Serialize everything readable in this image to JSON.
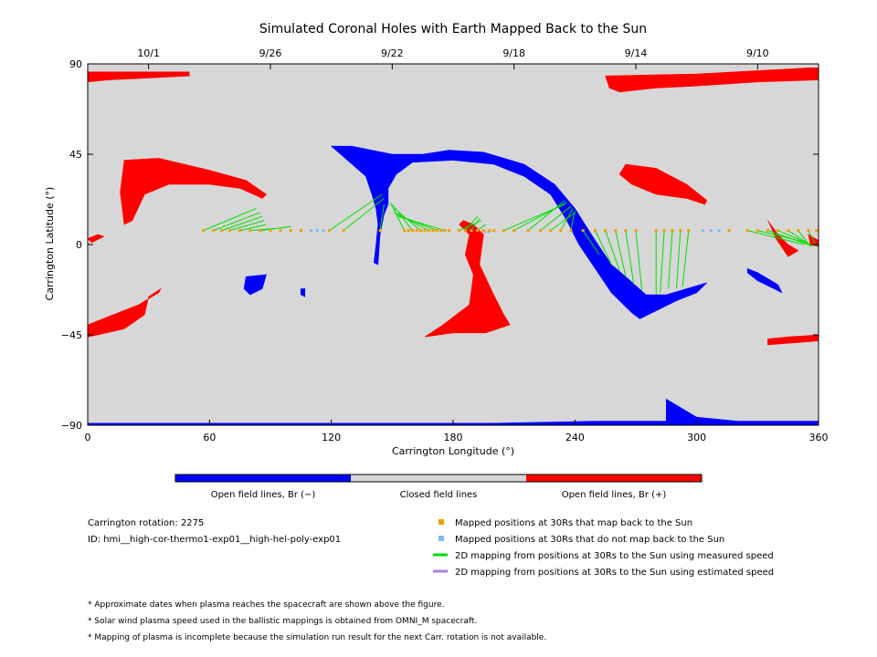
{
  "chart_data": {
    "type": "scatter",
    "title": "Simulated Coronal Holes with Earth Mapped Back to the Sun",
    "xlabel": "Carrington Longitude (°)",
    "ylabel": "Carrington Latitude (°)",
    "xlim": [
      0,
      360
    ],
    "ylim": [
      -90,
      90
    ],
    "x_ticks": [
      "0",
      "60",
      "120",
      "180",
      "240",
      "300",
      "360"
    ],
    "y_ticks": [
      "−90",
      "−45",
      "0",
      "45",
      "90"
    ],
    "top_axis_dates": [
      {
        "label": "10/1",
        "lon": 30
      },
      {
        "label": "9/26",
        "lon": 90
      },
      {
        "label": "9/22",
        "lon": 150
      },
      {
        "label": "9/18",
        "lon": 210
      },
      {
        "label": "9/14",
        "lon": 270
      },
      {
        "label": "9/10",
        "lon": 330
      }
    ],
    "regions": {
      "positive": [
        [
          [
            0,
            86
          ],
          [
            50,
            86
          ],
          [
            50,
            84
          ],
          [
            30,
            83
          ],
          [
            10,
            82
          ],
          [
            0,
            81
          ]
        ],
        [
          [
            255,
            84
          ],
          [
            300,
            85
          ],
          [
            355,
            88
          ],
          [
            360,
            88
          ],
          [
            360,
            82
          ],
          [
            330,
            81
          ],
          [
            300,
            79
          ],
          [
            280,
            78
          ],
          [
            262,
            76
          ],
          [
            257,
            78
          ]
        ],
        [
          [
            18,
            42
          ],
          [
            35,
            43
          ],
          [
            60,
            37
          ],
          [
            78,
            32
          ],
          [
            88,
            25
          ],
          [
            86,
            23
          ],
          [
            75,
            28
          ],
          [
            60,
            30
          ],
          [
            40,
            30
          ],
          [
            28,
            25
          ],
          [
            22,
            12
          ],
          [
            18,
            10
          ],
          [
            16,
            26
          ]
        ],
        [
          [
            0,
            3
          ],
          [
            5,
            5
          ],
          [
            8,
            4
          ],
          [
            2,
            1
          ]
        ],
        [
          [
            0,
            -40
          ],
          [
            10,
            -36
          ],
          [
            25,
            -30
          ],
          [
            35,
            -24
          ],
          [
            36,
            -22
          ],
          [
            30,
            -26
          ],
          [
            28,
            -35
          ],
          [
            18,
            -42
          ],
          [
            5,
            -45
          ],
          [
            0,
            -46
          ]
        ],
        [
          [
            185,
            12
          ],
          [
            190,
            10
          ],
          [
            195,
            5
          ],
          [
            193,
            -10
          ],
          [
            200,
            -25
          ],
          [
            205,
            -35
          ],
          [
            208,
            -40
          ],
          [
            196,
            -44
          ],
          [
            180,
            -44
          ],
          [
            166,
            -46
          ],
          [
            175,
            -40
          ],
          [
            188,
            -30
          ],
          [
            190,
            -15
          ],
          [
            186,
            -5
          ],
          [
            188,
            5
          ],
          [
            183,
            10
          ]
        ],
        [
          [
            265,
            40
          ],
          [
            280,
            38
          ],
          [
            295,
            30
          ],
          [
            305,
            22
          ],
          [
            304,
            20
          ],
          [
            295,
            23
          ],
          [
            280,
            25
          ],
          [
            268,
            30
          ],
          [
            262,
            35
          ]
        ],
        [
          [
            335,
            12
          ],
          [
            340,
            5
          ],
          [
            345,
            0
          ],
          [
            350,
            -3
          ],
          [
            345,
            -6
          ],
          [
            339,
            3
          ],
          [
            336,
            10
          ]
        ],
        [
          [
            335,
            -50
          ],
          [
            360,
            -48
          ],
          [
            360,
            -45
          ],
          [
            345,
            -46
          ],
          [
            335,
            -47
          ]
        ],
        [
          [
            355,
            5
          ],
          [
            360,
            2
          ],
          [
            360,
            -1
          ],
          [
            356,
            0
          ]
        ]
      ],
      "negative": [
        [
          [
            120,
            49
          ],
          [
            130,
            49
          ],
          [
            150,
            45
          ],
          [
            165,
            45
          ],
          [
            178,
            47
          ],
          [
            195,
            46
          ],
          [
            215,
            40
          ],
          [
            230,
            30
          ],
          [
            240,
            18
          ],
          [
            245,
            10
          ],
          [
            250,
            2
          ],
          [
            258,
            -10
          ],
          [
            265,
            -16
          ],
          [
            275,
            -25
          ],
          [
            285,
            -25
          ],
          [
            295,
            -22
          ],
          [
            305,
            -19
          ],
          [
            300,
            -24
          ],
          [
            290,
            -28
          ],
          [
            280,
            -33
          ],
          [
            272,
            -37
          ],
          [
            268,
            -34
          ],
          [
            258,
            -24
          ],
          [
            250,
            -12
          ],
          [
            242,
            0
          ],
          [
            236,
            12
          ],
          [
            228,
            25
          ],
          [
            215,
            34
          ],
          [
            200,
            40
          ],
          [
            180,
            42
          ],
          [
            160,
            41
          ],
          [
            152,
            35
          ],
          [
            148,
            28
          ],
          [
            148,
            20
          ],
          [
            146,
            15
          ],
          [
            144,
            5
          ],
          [
            143,
            -10
          ],
          [
            141,
            -9
          ],
          [
            142,
            0
          ],
          [
            143,
            10
          ],
          [
            142,
            18
          ],
          [
            140,
            25
          ],
          [
            137,
            34
          ],
          [
            128,
            42
          ]
        ],
        [
          [
            78,
            -16
          ],
          [
            88,
            -15
          ],
          [
            86,
            -22
          ],
          [
            80,
            -25
          ],
          [
            77,
            -22
          ]
        ],
        [
          [
            105,
            -22
          ],
          [
            107,
            -22
          ],
          [
            107,
            -26
          ],
          [
            105,
            -25
          ]
        ],
        [
          [
            325,
            -12
          ],
          [
            330,
            -14
          ],
          [
            340,
            -20
          ],
          [
            342,
            -24
          ],
          [
            338,
            -22
          ],
          [
            330,
            -18
          ],
          [
            325,
            -14
          ]
        ],
        [
          [
            0,
            -90
          ],
          [
            360,
            -90
          ],
          [
            360,
            -88
          ],
          [
            300,
            -88
          ],
          [
            250,
            -88
          ],
          [
            200,
            -89
          ],
          [
            100,
            -89
          ],
          [
            0,
            -89
          ]
        ],
        [
          [
            285,
            -77
          ],
          [
            300,
            -86
          ],
          [
            320,
            -88
          ],
          [
            300,
            -88
          ],
          [
            285,
            -88
          ]
        ]
      ]
    },
    "mapped_points_measured": [
      {
        "lon": 57,
        "lat": 7
      },
      {
        "lon": 62,
        "lat": 7
      },
      {
        "lon": 66,
        "lat": 7
      },
      {
        "lon": 70,
        "lat": 7
      },
      {
        "lon": 75,
        "lat": 7
      },
      {
        "lon": 80,
        "lat": 7
      },
      {
        "lon": 85,
        "lat": 7
      },
      {
        "lon": 90,
        "lat": 7
      },
      {
        "lon": 95,
        "lat": 7
      },
      {
        "lon": 100,
        "lat": 7
      },
      {
        "lon": 105,
        "lat": 7
      },
      {
        "lon": 119,
        "lat": 7
      },
      {
        "lon": 126,
        "lat": 7
      },
      {
        "lon": 144,
        "lat": 7
      },
      {
        "lon": 156,
        "lat": 7
      },
      {
        "lon": 158,
        "lat": 7
      },
      {
        "lon": 160,
        "lat": 7
      },
      {
        "lon": 162,
        "lat": 7
      },
      {
        "lon": 164,
        "lat": 7
      },
      {
        "lon": 166,
        "lat": 7
      },
      {
        "lon": 168,
        "lat": 7
      },
      {
        "lon": 170,
        "lat": 7
      },
      {
        "lon": 172,
        "lat": 7
      },
      {
        "lon": 174,
        "lat": 7
      },
      {
        "lon": 176,
        "lat": 7
      },
      {
        "lon": 178,
        "lat": 7
      },
      {
        "lon": 183,
        "lat": 7
      },
      {
        "lon": 186,
        "lat": 7
      },
      {
        "lon": 189,
        "lat": 7
      },
      {
        "lon": 192,
        "lat": 7
      },
      {
        "lon": 195,
        "lat": 7
      },
      {
        "lon": 198,
        "lat": 7
      },
      {
        "lon": 200,
        "lat": 7
      },
      {
        "lon": 205,
        "lat": 7
      },
      {
        "lon": 210,
        "lat": 7
      },
      {
        "lon": 217,
        "lat": 7
      },
      {
        "lon": 223,
        "lat": 7
      },
      {
        "lon": 228,
        "lat": 7
      },
      {
        "lon": 233,
        "lat": 7
      },
      {
        "lon": 238,
        "lat": 7
      },
      {
        "lon": 244,
        "lat": 7
      },
      {
        "lon": 250,
        "lat": 7
      },
      {
        "lon": 255,
        "lat": 7
      },
      {
        "lon": 260,
        "lat": 7
      },
      {
        "lon": 265,
        "lat": 7
      },
      {
        "lon": 270,
        "lat": 7
      },
      {
        "lon": 280,
        "lat": 7
      },
      {
        "lon": 284,
        "lat": 7
      },
      {
        "lon": 288,
        "lat": 7
      },
      {
        "lon": 292,
        "lat": 7
      },
      {
        "lon": 296,
        "lat": 7
      },
      {
        "lon": 316,
        "lat": 7
      },
      {
        "lon": 325,
        "lat": 7
      },
      {
        "lon": 330,
        "lat": 7
      },
      {
        "lon": 335,
        "lat": 7
      },
      {
        "lon": 340,
        "lat": 7
      },
      {
        "lon": 345,
        "lat": 7
      },
      {
        "lon": 350,
        "lat": 7
      },
      {
        "lon": 355,
        "lat": 7
      },
      {
        "lon": 359,
        "lat": 7
      }
    ],
    "mapped_points_no_map": [
      {
        "lon": 110,
        "lat": 7
      },
      {
        "lon": 113,
        "lat": 7
      },
      {
        "lon": 116,
        "lat": 7
      },
      {
        "lon": 303,
        "lat": 7
      },
      {
        "lon": 307,
        "lat": 7
      },
      {
        "lon": 311,
        "lat": 7
      }
    ],
    "green_lines": [
      [
        57,
        7,
        83,
        18
      ],
      [
        62,
        7,
        85,
        16
      ],
      [
        66,
        7,
        86,
        14
      ],
      [
        70,
        7,
        87,
        12
      ],
      [
        75,
        7,
        88,
        10
      ],
      [
        80,
        7,
        92,
        8
      ],
      [
        85,
        7,
        100,
        9
      ],
      [
        119,
        7,
        145,
        25
      ],
      [
        126,
        7,
        146,
        23
      ],
      [
        144,
        7,
        146,
        20
      ],
      [
        156,
        7,
        149,
        21
      ],
      [
        160,
        7,
        150,
        20
      ],
      [
        164,
        7,
        151,
        18
      ],
      [
        168,
        7,
        151,
        16
      ],
      [
        172,
        7,
        152,
        15
      ],
      [
        176,
        7,
        153,
        14
      ],
      [
        183,
        7,
        194,
        12
      ],
      [
        186,
        7,
        192,
        14
      ],
      [
        189,
        7,
        193,
        13
      ],
      [
        192,
        7,
        196,
        10
      ],
      [
        205,
        7,
        235,
        20
      ],
      [
        210,
        7,
        236,
        21
      ],
      [
        217,
        7,
        235,
        22
      ],
      [
        223,
        7,
        238,
        19
      ],
      [
        228,
        7,
        240,
        16
      ],
      [
        233,
        7,
        239,
        18
      ],
      [
        238,
        7,
        240,
        17
      ],
      [
        244,
        7,
        252,
        -5
      ],
      [
        250,
        7,
        258,
        -10
      ],
      [
        255,
        7,
        262,
        -13
      ],
      [
        260,
        7,
        265,
        -16
      ],
      [
        265,
        7,
        269,
        -20
      ],
      [
        270,
        7,
        273,
        -23
      ],
      [
        280,
        7,
        280,
        -25
      ],
      [
        284,
        7,
        282,
        -24
      ],
      [
        288,
        7,
        286,
        -22
      ],
      [
        292,
        7,
        290,
        -22
      ],
      [
        296,
        7,
        293,
        -21
      ],
      [
        325,
        7,
        353,
        0
      ],
      [
        330,
        7,
        354,
        1
      ],
      [
        335,
        7,
        355,
        0
      ],
      [
        340,
        7,
        356,
        0
      ],
      [
        345,
        7,
        357,
        -1
      ],
      [
        350,
        7,
        356,
        -1
      ],
      [
        355,
        7,
        359,
        -1
      ]
    ],
    "purple_lines": [
      [
        195,
        7,
        196,
        6
      ],
      [
        198,
        7,
        197,
        6
      ]
    ],
    "colorbar": [
      {
        "label": "Open field lines, Br (−)",
        "color": "#0000ff"
      },
      {
        "label": "Closed field lines",
        "color": "#d7d7d7"
      },
      {
        "label": "Open field lines, Br (+)",
        "color": "#ff0000"
      }
    ],
    "legend": [
      {
        "label": "Mapped positions at 30Rs that map back to the Sun",
        "color": "#f0a000",
        "kind": "square"
      },
      {
        "label": "Mapped positions at 30Rs that do not map back to the Sun",
        "color": "#80b8f0",
        "kind": "square"
      },
      {
        "label": "2D mapping from positions at 30Rs to the Sun using measured speed",
        "color": "#00e000",
        "kind": "line"
      },
      {
        "label": "2D mapping from positions at 30Rs to the Sun using estimated speed",
        "color": "#b080e0",
        "kind": "line"
      }
    ],
    "info": {
      "rotation": "Carrington rotation: 2275",
      "id": "ID: hmi__high-cor-thermo1-exp01__high-hel-poly-exp01"
    },
    "notes": [
      "* Approximate dates when plasma reaches the spacecraft are shown above the figure.",
      "* Solar wind plasma speed used in the ballistic mappings is obtained from OMNI_M spacecraft.",
      "* Mapping of plasma is incomplete because the simulation run result for the next Carr. rotation is not available."
    ],
    "colors": {
      "background": "#d7d7d7",
      "positive": "#ff0000",
      "negative": "#0000ff",
      "measured_line": "#00e000",
      "estimated_line": "#b080e0",
      "mapped": "#f0a000",
      "not_mapped": "#80b8f0"
    }
  }
}
